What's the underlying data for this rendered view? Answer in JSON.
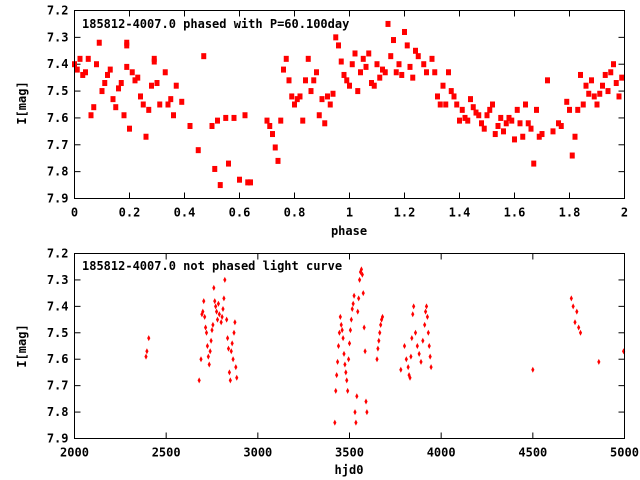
{
  "chart_data": [
    {
      "type": "scatter",
      "title": "185812-4007.0 phased with P=60.100day",
      "xlabel": "phase",
      "ylabel": "I[mag]",
      "xlim": [
        0,
        2
      ],
      "ylim": [
        7.2,
        7.9
      ],
      "y_inverted": true,
      "xticks": [
        "0",
        "0.2",
        "0.4",
        "0.6",
        "0.8",
        "1",
        "1.2",
        "1.4",
        "1.6",
        "1.8",
        "2"
      ],
      "yticks": [
        "7.2",
        "7.3",
        "7.4",
        "7.5",
        "7.6",
        "7.7",
        "7.8",
        "7.9"
      ],
      "marker": "square",
      "color": "#ff0000",
      "grid": false,
      "points": [
        [
          0.0,
          7.4
        ],
        [
          0.01,
          7.42
        ],
        [
          0.02,
          7.38
        ],
        [
          0.03,
          7.44
        ],
        [
          0.04,
          7.43
        ],
        [
          0.05,
          7.38
        ],
        [
          0.06,
          7.59
        ],
        [
          0.07,
          7.56
        ],
        [
          0.08,
          7.4
        ],
        [
          0.09,
          7.32
        ],
        [
          0.1,
          7.5
        ],
        [
          0.11,
          7.47
        ],
        [
          0.12,
          7.44
        ],
        [
          0.13,
          7.42
        ],
        [
          0.14,
          7.53
        ],
        [
          0.15,
          7.56
        ],
        [
          0.16,
          7.49
        ],
        [
          0.17,
          7.47
        ],
        [
          0.18,
          7.59
        ],
        [
          0.19,
          7.41
        ],
        [
          0.19,
          7.32
        ],
        [
          0.19,
          7.33
        ],
        [
          0.2,
          7.64
        ],
        [
          0.21,
          7.43
        ],
        [
          0.22,
          7.46
        ],
        [
          0.23,
          7.45
        ],
        [
          0.24,
          7.52
        ],
        [
          0.25,
          7.55
        ],
        [
          0.26,
          7.67
        ],
        [
          0.27,
          7.57
        ],
        [
          0.28,
          7.48
        ],
        [
          0.29,
          7.38
        ],
        [
          0.29,
          7.39
        ],
        [
          0.3,
          7.47
        ],
        [
          0.31,
          7.55
        ],
        [
          0.33,
          7.43
        ],
        [
          0.34,
          7.55
        ],
        [
          0.35,
          7.53
        ],
        [
          0.36,
          7.59
        ],
        [
          0.37,
          7.48
        ],
        [
          0.39,
          7.54
        ],
        [
          0.42,
          7.63
        ],
        [
          0.45,
          7.72
        ],
        [
          0.47,
          7.37
        ],
        [
          0.5,
          7.63
        ],
        [
          0.51,
          7.79
        ],
        [
          0.52,
          7.61
        ],
        [
          0.53,
          7.85
        ],
        [
          0.55,
          7.6
        ],
        [
          0.56,
          7.77
        ],
        [
          0.58,
          7.6
        ],
        [
          0.6,
          7.83
        ],
        [
          0.62,
          7.59
        ],
        [
          0.63,
          7.84
        ],
        [
          0.64,
          7.84
        ],
        [
          0.7,
          7.61
        ],
        [
          0.71,
          7.63
        ],
        [
          0.72,
          7.66
        ],
        [
          0.73,
          7.71
        ],
        [
          0.74,
          7.76
        ],
        [
          0.75,
          7.61
        ],
        [
          0.76,
          7.42
        ],
        [
          0.77,
          7.38
        ],
        [
          0.78,
          7.46
        ],
        [
          0.79,
          7.52
        ],
        [
          0.8,
          7.55
        ],
        [
          0.81,
          7.53
        ],
        [
          0.82,
          7.52
        ],
        [
          0.83,
          7.61
        ],
        [
          0.84,
          7.46
        ],
        [
          0.85,
          7.38
        ],
        [
          0.86,
          7.5
        ],
        [
          0.87,
          7.46
        ],
        [
          0.88,
          7.43
        ],
        [
          0.89,
          7.59
        ],
        [
          0.9,
          7.53
        ],
        [
          0.91,
          7.62
        ],
        [
          0.92,
          7.52
        ],
        [
          0.93,
          7.55
        ],
        [
          0.94,
          7.51
        ],
        [
          0.95,
          7.3
        ],
        [
          0.96,
          7.33
        ],
        [
          0.97,
          7.39
        ],
        [
          0.98,
          7.44
        ],
        [
          0.99,
          7.46
        ],
        [
          1.0,
          7.48
        ],
        [
          1.01,
          7.4
        ],
        [
          1.02,
          7.36
        ],
        [
          1.03,
          7.5
        ],
        [
          1.04,
          7.43
        ],
        [
          1.05,
          7.38
        ],
        [
          1.06,
          7.41
        ],
        [
          1.07,
          7.36
        ],
        [
          1.08,
          7.47
        ],
        [
          1.09,
          7.48
        ],
        [
          1.1,
          7.4
        ],
        [
          1.11,
          7.45
        ],
        [
          1.12,
          7.42
        ],
        [
          1.13,
          7.43
        ],
        [
          1.14,
          7.25
        ],
        [
          1.15,
          7.37
        ],
        [
          1.16,
          7.31
        ],
        [
          1.17,
          7.43
        ],
        [
          1.18,
          7.4
        ],
        [
          1.19,
          7.44
        ],
        [
          1.2,
          7.28
        ],
        [
          1.21,
          7.33
        ],
        [
          1.22,
          7.41
        ],
        [
          1.23,
          7.45
        ],
        [
          1.24,
          7.35
        ],
        [
          1.25,
          7.37
        ],
        [
          1.27,
          7.4
        ],
        [
          1.28,
          7.43
        ],
        [
          1.3,
          7.38
        ],
        [
          1.31,
          7.43
        ],
        [
          1.32,
          7.52
        ],
        [
          1.33,
          7.55
        ],
        [
          1.34,
          7.48
        ],
        [
          1.35,
          7.55
        ],
        [
          1.36,
          7.43
        ],
        [
          1.37,
          7.5
        ],
        [
          1.38,
          7.52
        ],
        [
          1.39,
          7.55
        ],
        [
          1.4,
          7.61
        ],
        [
          1.41,
          7.57
        ],
        [
          1.42,
          7.6
        ],
        [
          1.43,
          7.61
        ],
        [
          1.44,
          7.53
        ],
        [
          1.45,
          7.56
        ],
        [
          1.46,
          7.58
        ],
        [
          1.47,
          7.59
        ],
        [
          1.48,
          7.62
        ],
        [
          1.49,
          7.64
        ],
        [
          1.5,
          7.59
        ],
        [
          1.51,
          7.57
        ],
        [
          1.52,
          7.55
        ],
        [
          1.53,
          7.66
        ],
        [
          1.54,
          7.63
        ],
        [
          1.55,
          7.6
        ],
        [
          1.56,
          7.65
        ],
        [
          1.57,
          7.62
        ],
        [
          1.58,
          7.6
        ],
        [
          1.59,
          7.61
        ],
        [
          1.6,
          7.68
        ],
        [
          1.61,
          7.57
        ],
        [
          1.62,
          7.62
        ],
        [
          1.63,
          7.67
        ],
        [
          1.64,
          7.55
        ],
        [
          1.65,
          7.62
        ],
        [
          1.66,
          7.64
        ],
        [
          1.67,
          7.77
        ],
        [
          1.68,
          7.57
        ],
        [
          1.69,
          7.67
        ],
        [
          1.7,
          7.66
        ],
        [
          1.72,
          7.46
        ],
        [
          1.74,
          7.65
        ],
        [
          1.76,
          7.62
        ],
        [
          1.77,
          7.63
        ],
        [
          1.79,
          7.54
        ],
        [
          1.8,
          7.57
        ],
        [
          1.81,
          7.74
        ],
        [
          1.82,
          7.67
        ],
        [
          1.83,
          7.57
        ],
        [
          1.84,
          7.44
        ],
        [
          1.85,
          7.55
        ],
        [
          1.86,
          7.48
        ],
        [
          1.87,
          7.51
        ],
        [
          1.88,
          7.46
        ],
        [
          1.89,
          7.52
        ],
        [
          1.9,
          7.55
        ],
        [
          1.91,
          7.51
        ],
        [
          1.92,
          7.48
        ],
        [
          1.93,
          7.44
        ],
        [
          1.94,
          7.5
        ],
        [
          1.95,
          7.43
        ],
        [
          1.96,
          7.4
        ],
        [
          1.97,
          7.47
        ],
        [
          1.98,
          7.52
        ],
        [
          1.99,
          7.45
        ]
      ]
    },
    {
      "type": "scatter",
      "title": "185812-4007.0 not phased light curve",
      "xlabel": "hjd0",
      "ylabel": "I[mag]",
      "xlim": [
        2000,
        5000
      ],
      "ylim": [
        7.2,
        7.9
      ],
      "y_inverted": true,
      "xticks": [
        "2000",
        "2500",
        "3000",
        "3500",
        "4000",
        "4500",
        "5000"
      ],
      "yticks": [
        "7.2",
        "7.3",
        "7.4",
        "7.5",
        "7.6",
        "7.7",
        "7.8",
        "7.9"
      ],
      "marker": "diamond",
      "color": "#ff0000",
      "grid": false,
      "points": [
        [
          2390,
          7.59
        ],
        [
          2395,
          7.57
        ],
        [
          2405,
          7.52
        ],
        [
          2680,
          7.68
        ],
        [
          2690,
          7.6
        ],
        [
          2695,
          7.43
        ],
        [
          2700,
          7.42
        ],
        [
          2705,
          7.38
        ],
        [
          2710,
          7.44
        ],
        [
          2715,
          7.48
        ],
        [
          2720,
          7.5
        ],
        [
          2725,
          7.55
        ],
        [
          2730,
          7.59
        ],
        [
          2735,
          7.62
        ],
        [
          2740,
          7.57
        ],
        [
          2745,
          7.53
        ],
        [
          2750,
          7.49
        ],
        [
          2755,
          7.47
        ],
        [
          2760,
          7.33
        ],
        [
          2765,
          7.38
        ],
        [
          2770,
          7.4
        ],
        [
          2775,
          7.42
        ],
        [
          2780,
          7.45
        ],
        [
          2785,
          7.39
        ],
        [
          2790,
          7.43
        ],
        [
          2800,
          7.46
        ],
        [
          2805,
          7.44
        ],
        [
          2810,
          7.41
        ],
        [
          2815,
          7.37
        ],
        [
          2820,
          7.3
        ],
        [
          2830,
          7.45
        ],
        [
          2835,
          7.52
        ],
        [
          2840,
          7.56
        ],
        [
          2845,
          7.65
        ],
        [
          2850,
          7.68
        ],
        [
          2855,
          7.57
        ],
        [
          2860,
          7.54
        ],
        [
          2865,
          7.6
        ],
        [
          2870,
          7.5
        ],
        [
          2875,
          7.46
        ],
        [
          2880,
          7.63
        ],
        [
          2885,
          7.67
        ],
        [
          3420,
          7.84
        ],
        [
          3425,
          7.72
        ],
        [
          3430,
          7.66
        ],
        [
          3435,
          7.61
        ],
        [
          3440,
          7.55
        ],
        [
          3445,
          7.5
        ],
        [
          3450,
          7.44
        ],
        [
          3455,
          7.47
        ],
        [
          3460,
          7.49
        ],
        [
          3465,
          7.52
        ],
        [
          3470,
          7.58
        ],
        [
          3475,
          7.62
        ],
        [
          3480,
          7.65
        ],
        [
          3485,
          7.68
        ],
        [
          3490,
          7.72
        ],
        [
          3495,
          7.6
        ],
        [
          3500,
          7.54
        ],
        [
          3505,
          7.49
        ],
        [
          3510,
          7.45
        ],
        [
          3515,
          7.41
        ],
        [
          3520,
          7.39
        ],
        [
          3525,
          7.36
        ],
        [
          3530,
          7.8
        ],
        [
          3535,
          7.84
        ],
        [
          3540,
          7.74
        ],
        [
          3545,
          7.42
        ],
        [
          3550,
          7.37
        ],
        [
          3555,
          7.3
        ],
        [
          3560,
          7.27
        ],
        [
          3565,
          7.26
        ],
        [
          3570,
          7.28
        ],
        [
          3575,
          7.35
        ],
        [
          3580,
          7.48
        ],
        [
          3585,
          7.57
        ],
        [
          3590,
          7.76
        ],
        [
          3595,
          7.8
        ],
        [
          3650,
          7.6
        ],
        [
          3655,
          7.56
        ],
        [
          3660,
          7.53
        ],
        [
          3665,
          7.5
        ],
        [
          3670,
          7.47
        ],
        [
          3675,
          7.45
        ],
        [
          3680,
          7.44
        ],
        [
          3780,
          7.64
        ],
        [
          3800,
          7.55
        ],
        [
          3810,
          7.6
        ],
        [
          3820,
          7.63
        ],
        [
          3825,
          7.66
        ],
        [
          3830,
          7.67
        ],
        [
          3835,
          7.59
        ],
        [
          3840,
          7.52
        ],
        [
          3845,
          7.43
        ],
        [
          3850,
          7.4
        ],
        [
          3860,
          7.5
        ],
        [
          3870,
          7.55
        ],
        [
          3880,
          7.58
        ],
        [
          3890,
          7.61
        ],
        [
          3900,
          7.53
        ],
        [
          3910,
          7.47
        ],
        [
          3915,
          7.42
        ],
        [
          3920,
          7.4
        ],
        [
          3925,
          7.44
        ],
        [
          3930,
          7.5
        ],
        [
          3935,
          7.55
        ],
        [
          3940,
          7.59
        ],
        [
          3945,
          7.63
        ],
        [
          4500,
          7.64
        ],
        [
          4710,
          7.37
        ],
        [
          4720,
          7.4
        ],
        [
          4730,
          7.46
        ],
        [
          4740,
          7.42
        ],
        [
          4750,
          7.48
        ],
        [
          4760,
          7.5
        ],
        [
          4860,
          7.61
        ],
        [
          4995,
          7.57
        ]
      ]
    }
  ]
}
